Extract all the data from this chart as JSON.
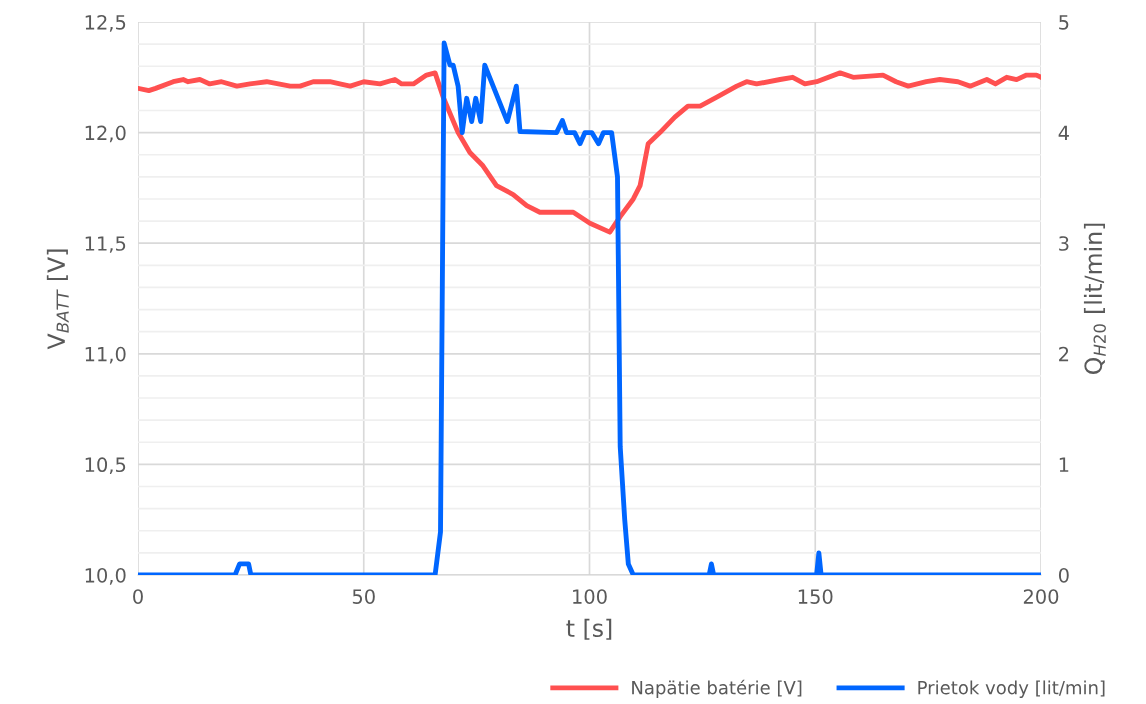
{
  "chart_data": {
    "type": "line",
    "xlabel": "t [s]",
    "ylabel": "V$_{BATT}$ [V]",
    "y2label": "Q$_{H20}$ [lit/min]",
    "xlim": [
      0,
      200
    ],
    "xticks": [
      0,
      50,
      100,
      150,
      200
    ],
    "ylim": [
      10,
      12.5
    ],
    "yticks": [
      {
        "value": 10,
        "label": "10,0"
      },
      {
        "value": 10.5,
        "label": "10,5"
      },
      {
        "value": 11,
        "label": "11,0"
      },
      {
        "value": 11.5,
        "label": "11,5"
      },
      {
        "value": 12,
        "label": "12,0"
      },
      {
        "value": 12.5,
        "label": "12,5"
      }
    ],
    "y2lim": [
      0,
      5
    ],
    "y2ticks": [
      0,
      1,
      2,
      3,
      4,
      5
    ],
    "grid": true,
    "legend": "bottom right",
    "marker": "none",
    "line_style": "solid",
    "series": [
      {
        "name": "Napätie batérie [V]",
        "color": "#ff5050",
        "x": [
          0,
          2.4,
          3.9,
          7.8,
          10,
          11.1,
          13.7,
          15.9,
          18.5,
          21.9,
          24.8,
          28.5,
          33.7,
          35.9,
          38.8,
          42.5,
          44.7,
          47,
          50,
          53.6,
          56.9,
          58.4,
          61,
          63.9,
          65.8,
          67.6,
          70.9,
          73.5,
          76.4,
          79.4,
          83.1,
          86.1,
          89,
          93.5,
          96.4,
          100.1,
          104.5,
          106.8,
          109.7,
          111.2,
          113,
          115.6,
          118.9,
          121.8,
          124.5,
          128.2,
          132.6,
          134.8,
          137,
          142.2,
          145,
          147.7,
          150.3,
          155.5,
          158.4,
          165,
          167.9,
          170.6,
          174.6,
          177.6,
          181.6,
          184.3,
          188,
          189.9,
          192.4,
          194.6,
          196.8,
          199,
          200
        ],
        "values": [
          12.2,
          12.19,
          12.2,
          12.23,
          12.24,
          12.23,
          12.24,
          12.22,
          12.23,
          12.21,
          12.22,
          12.23,
          12.21,
          12.21,
          12.23,
          12.23,
          12.22,
          12.21,
          12.23,
          12.22,
          12.24,
          12.22,
          12.22,
          12.26,
          12.27,
          12.16,
          12.0,
          11.91,
          11.85,
          11.76,
          11.72,
          11.67,
          11.64,
          11.64,
          11.64,
          11.59,
          11.55,
          11.62,
          11.7,
          11.76,
          11.95,
          12.0,
          12.07,
          12.12,
          12.12,
          12.16,
          12.21,
          12.23,
          12.22,
          12.24,
          12.25,
          12.22,
          12.23,
          12.27,
          12.25,
          12.26,
          12.23,
          12.21,
          12.23,
          12.24,
          12.23,
          12.21,
          12.24,
          12.22,
          12.25,
          12.24,
          12.26,
          12.26,
          12.25
        ]
      },
      {
        "name": "Prietok vody [lit/min]",
        "color": "#0066ff",
        "axis": "y2",
        "x": [
          0,
          21.5,
          22.5,
          24.5,
          25,
          65.8,
          67,
          67.8,
          69.1,
          69.8,
          70.9,
          71.8,
          72.8,
          73.9,
          74.8,
          75.9,
          76.8,
          81.8,
          83.8,
          84.6,
          92.7,
          94,
          94.9,
          96.7,
          97.9,
          99,
          100.5,
          102,
          103.1,
          104.9,
          106.2,
          106.8,
          107.8,
          108.6,
          109.7,
          126.5,
          127,
          127.5,
          150.3,
          150.8,
          151.3,
          200
        ],
        "values": [
          0,
          0,
          0.1,
          0.1,
          0,
          0,
          0.39,
          4.81,
          4.61,
          4.61,
          4.42,
          4.0,
          4.31,
          4.1,
          4.31,
          4.1,
          4.61,
          4.1,
          4.42,
          4.01,
          4.0,
          4.11,
          4.0,
          4.0,
          3.9,
          4.0,
          4.0,
          3.9,
          4.0,
          4.0,
          3.6,
          1.16,
          0.5,
          0.1,
          0,
          0,
          0.1,
          0,
          0,
          0.2,
          0,
          0
        ]
      }
    ]
  }
}
